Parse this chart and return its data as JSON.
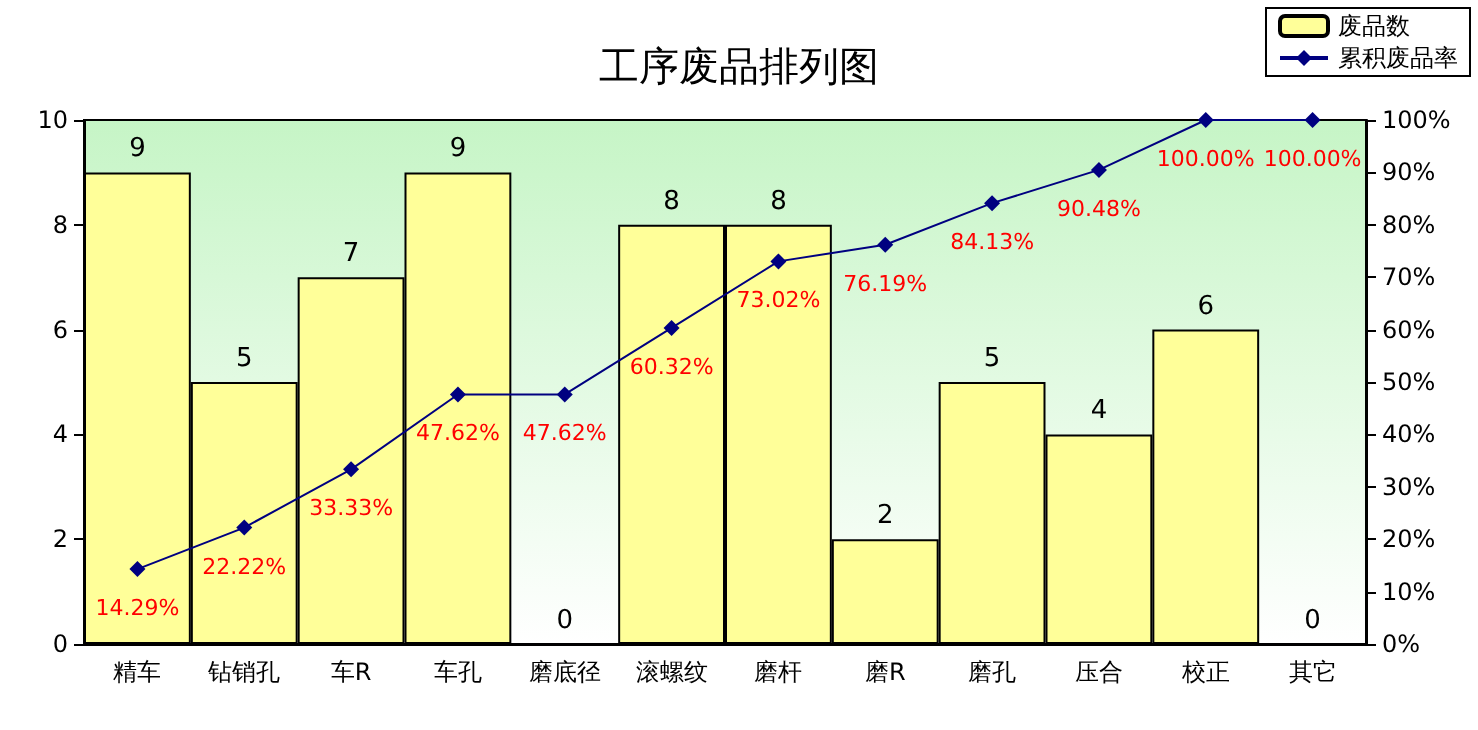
{
  "chart_data": {
    "type": "bar",
    "title": "工序废品排列图",
    "categories": [
      "精车",
      "钻销孔",
      "车R",
      "车孔",
      "磨底径",
      "滚螺纹",
      "磨杆",
      "磨R",
      "磨孔",
      "压合",
      "校正",
      "其它"
    ],
    "series": [
      {
        "name": "废品数",
        "color": "#ffff99",
        "values": [
          9,
          5,
          7,
          9,
          0,
          8,
          8,
          2,
          5,
          4,
          6,
          0
        ],
        "value_labels": [
          "9",
          "5",
          "7",
          "9",
          "0",
          "8",
          "8",
          "2",
          "5",
          "4",
          "6",
          "0"
        ]
      },
      {
        "name": "累积废品率",
        "type": "line",
        "axis": "y2",
        "color": "#000080",
        "marker": "diamond",
        "values": [
          14.29,
          22.22,
          33.33,
          47.62,
          47.62,
          60.32,
          73.02,
          76.19,
          84.13,
          90.48,
          100,
          100
        ],
        "value_labels": [
          "14.29%",
          "22.22%",
          "33.33%",
          "47.62%",
          "47.62%",
          "60.32%",
          "73.02%",
          "76.19%",
          "84.13%",
          "90.48%",
          "100.00%",
          "100.00%"
        ]
      }
    ],
    "ylim": [
      0,
      10
    ],
    "yticks": [
      0,
      2,
      4,
      6,
      8,
      10
    ],
    "y2lim": [
      0,
      100
    ],
    "y2ticks": [
      {
        "value": 0,
        "label": "0%"
      },
      {
        "value": 10,
        "label": "10%"
      },
      {
        "value": 20,
        "label": "20%"
      },
      {
        "value": 30,
        "label": "30%"
      },
      {
        "value": 40,
        "label": "40%"
      },
      {
        "value": 50,
        "label": "50%"
      },
      {
        "value": 60,
        "label": "60%"
      },
      {
        "value": 70,
        "label": "70%"
      },
      {
        "value": 80,
        "label": "80%"
      },
      {
        "value": 90,
        "label": "90%"
      },
      {
        "value": 100,
        "label": "100%"
      }
    ],
    "legend": "top right",
    "grid": false
  }
}
